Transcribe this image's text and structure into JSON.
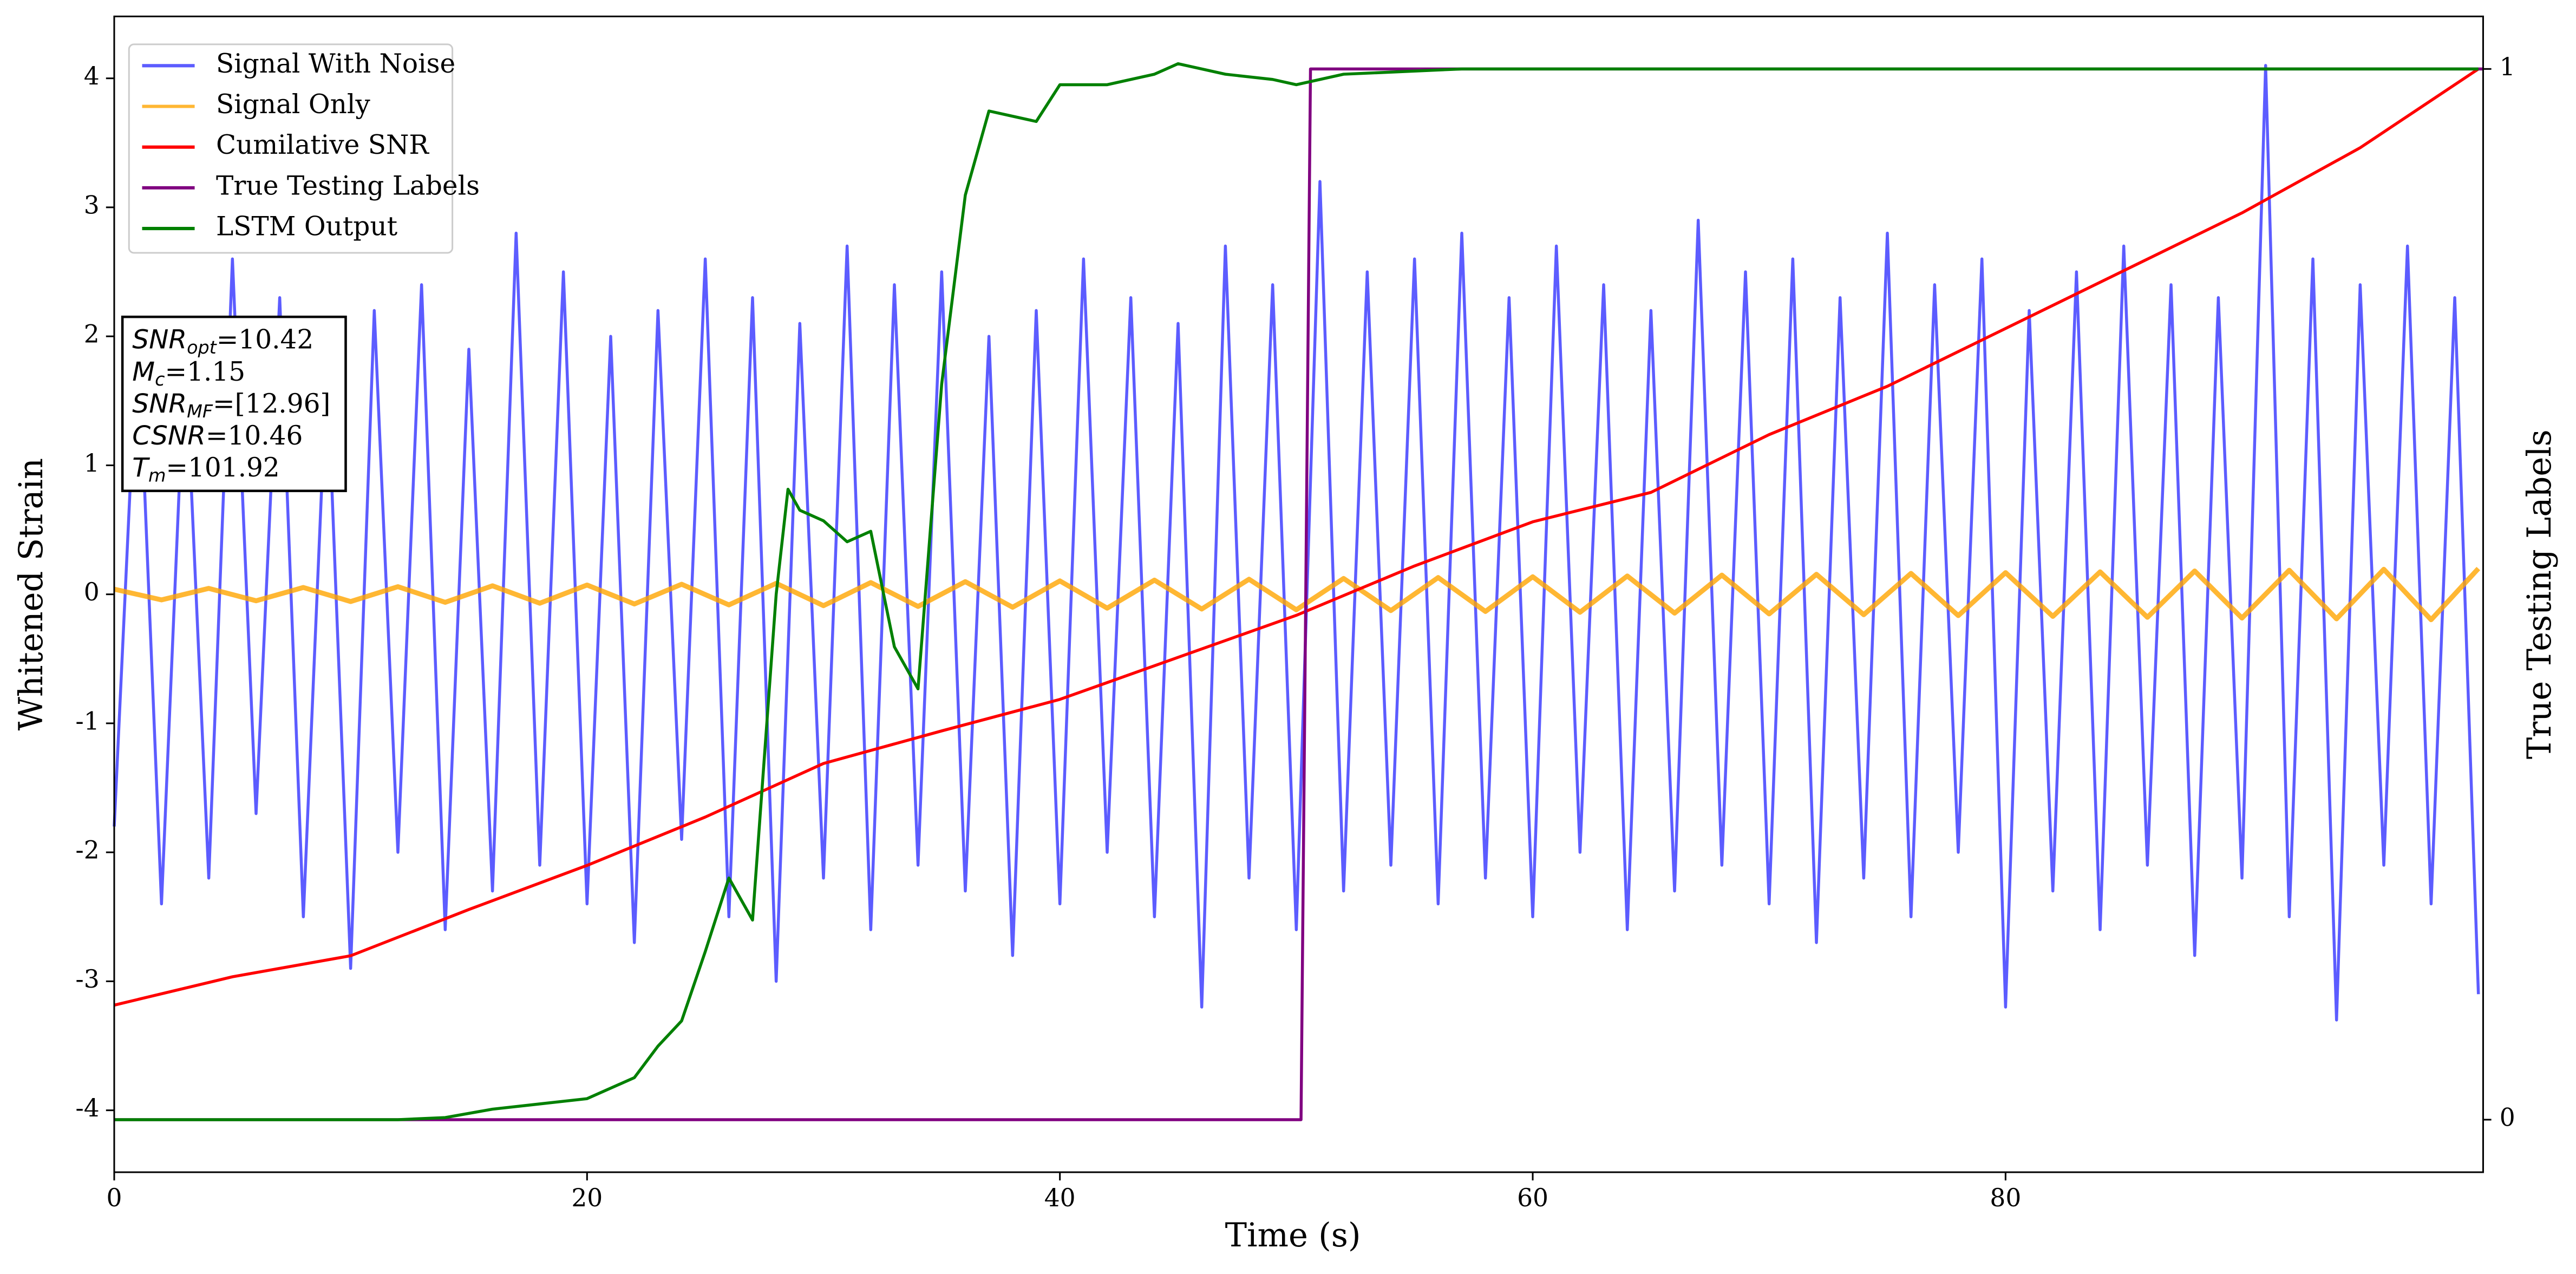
{
  "chart_data": {
    "type": "line",
    "xlabel": "Time (s)",
    "ylabel": "Whitened Strain",
    "y2label": "True Testing Labels",
    "xlim": [
      0,
      100.2
    ],
    "xticks": [
      0,
      20,
      40,
      60,
      80
    ],
    "ylim": [
      -4.48,
      4.48
    ],
    "yticks": [
      -4,
      -3,
      -2,
      -1,
      0,
      1,
      2,
      3,
      4
    ],
    "y2lim": [
      -0.05,
      1.05
    ],
    "y2ticks": [
      0,
      1
    ],
    "legend": "upper left",
    "annotations": [
      {
        "name": "SNR",
        "sub": "opt",
        "text": "=10.42"
      },
      {
        "name": "M",
        "sub": "c",
        "text": "=1.15"
      },
      {
        "name": "SNR",
        "sub": "MF",
        "text": "=[12.96]"
      },
      {
        "name": "CSNR",
        "sub": null,
        "text": "=10.46"
      },
      {
        "name": "T",
        "sub": "m",
        "text": "=101.92"
      }
    ],
    "series": [
      {
        "name": "Signal With Noise",
        "color": "#3333ff",
        "axis": "y",
        "x": [
          0,
          1,
          2,
          3,
          4,
          5,
          6,
          7,
          8,
          9,
          10,
          11,
          12,
          13,
          14,
          15,
          16,
          17,
          18,
          19,
          20,
          21,
          22,
          23,
          24,
          25,
          26,
          27,
          28,
          29,
          30,
          31,
          32,
          33,
          34,
          35,
          36,
          37,
          38,
          39,
          40,
          41,
          42,
          43,
          44,
          45,
          46,
          47,
          48,
          49,
          50,
          51,
          52,
          53,
          54,
          55,
          56,
          57,
          58,
          59,
          60,
          61,
          62,
          63,
          64,
          65,
          66,
          67,
          68,
          69,
          70,
          71,
          72,
          73,
          74,
          75,
          76,
          77,
          78,
          79,
          80,
          81,
          82,
          83,
          84,
          85,
          86,
          87,
          88,
          89,
          90,
          91,
          92,
          93,
          94,
          95,
          96,
          97,
          98,
          99,
          100
        ],
        "values": [
          -1.8,
          2.1,
          -2.4,
          1.9,
          -2.2,
          2.6,
          -1.7,
          2.3,
          -2.5,
          1.8,
          -2.9,
          2.2,
          -2.0,
          2.4,
          -2.6,
          1.9,
          -2.3,
          2.8,
          -2.1,
          2.5,
          -2.4,
          2.0,
          -2.7,
          2.2,
          -1.9,
          2.6,
          -2.5,
          2.3,
          -3.0,
          2.1,
          -2.2,
          2.7,
          -2.6,
          2.4,
          -2.1,
          2.5,
          -2.3,
          2.0,
          -2.8,
          2.2,
          -2.4,
          2.6,
          -2.0,
          2.3,
          -2.5,
          2.1,
          -3.2,
          2.7,
          -2.2,
          2.4,
          -2.6,
          3.2,
          -2.3,
          2.5,
          -2.1,
          2.6,
          -2.4,
          2.8,
          -2.2,
          2.3,
          -2.5,
          2.7,
          -2.0,
          2.4,
          -2.6,
          2.2,
          -2.3,
          2.9,
          -2.1,
          2.5,
          -2.4,
          2.6,
          -2.7,
          2.3,
          -2.2,
          2.8,
          -2.5,
          2.4,
          -2.0,
          2.6,
          -3.2,
          2.2,
          -2.3,
          2.5,
          -2.6,
          2.7,
          -2.1,
          2.4,
          -2.8,
          2.3,
          -2.2,
          4.1,
          -2.5,
          2.6,
          -3.3,
          2.4,
          -2.1,
          2.7,
          -2.4,
          2.3,
          -3.1
        ]
      },
      {
        "name": "Signal Only",
        "color": "#ffa500",
        "axis": "y",
        "x": [
          0,
          2,
          4,
          6,
          8,
          10,
          12,
          14,
          16,
          18,
          20,
          22,
          24,
          26,
          28,
          30,
          32,
          34,
          36,
          38,
          40,
          42,
          44,
          46,
          48,
          50,
          52,
          54,
          56,
          58,
          60,
          62,
          64,
          66,
          68,
          70,
          72,
          74,
          76,
          78,
          80,
          82,
          84,
          86,
          88,
          90,
          92,
          94,
          96,
          98,
          100
        ],
        "values": [
          0.04,
          -0.043,
          0.046,
          -0.05,
          0.053,
          -0.056,
          0.059,
          -0.062,
          0.066,
          -0.069,
          0.072,
          -0.075,
          0.078,
          -0.082,
          0.085,
          -0.088,
          0.091,
          -0.094,
          0.098,
          -0.1,
          0.104,
          -0.107,
          0.11,
          -0.114,
          0.117,
          -0.12,
          0.123,
          -0.126,
          0.13,
          -0.133,
          0.136,
          -0.139,
          0.142,
          -0.146,
          0.149,
          -0.152,
          0.155,
          -0.158,
          0.162,
          -0.165,
          0.168,
          -0.171,
          0.174,
          -0.178,
          0.181,
          -0.184,
          0.187,
          -0.19,
          0.194,
          -0.197,
          0.2
        ]
      },
      {
        "name": "Cumilative SNR",
        "color": "#ff0000",
        "axis": "y2",
        "x": [
          0,
          5,
          10,
          15,
          20,
          25,
          30,
          35,
          40,
          45,
          50,
          55,
          60,
          65,
          70,
          75,
          80,
          85,
          90,
          95,
          100
        ],
        "values": [
          0.109,
          0.136,
          0.156,
          0.2,
          0.242,
          0.288,
          0.339,
          0.37,
          0.4,
          0.44,
          0.48,
          0.527,
          0.569,
          0.597,
          0.652,
          0.698,
          0.753,
          0.808,
          0.863,
          0.925,
          1.0
        ]
      },
      {
        "name": "True Testing Labels",
        "color": "#800080",
        "axis": "y2",
        "x": [
          0,
          50.2,
          50.6,
          100.2
        ],
        "values": [
          0,
          0,
          1,
          1
        ]
      },
      {
        "name": "LSTM Output",
        "color": "#008000",
        "axis": "y2",
        "x": [
          0,
          12,
          14,
          16,
          18,
          20,
          22,
          23,
          24,
          25,
          26,
          27,
          28,
          28.5,
          29,
          30,
          31,
          32,
          33,
          34,
          35,
          36,
          37,
          38,
          39,
          40,
          42,
          44,
          45,
          47,
          49,
          50,
          52,
          55,
          57,
          60,
          100
        ],
        "values": [
          0,
          0,
          0.002,
          0.01,
          0.015,
          0.02,
          0.04,
          0.07,
          0.094,
          0.16,
          0.23,
          0.19,
          0.5,
          0.6,
          0.58,
          0.57,
          0.55,
          0.56,
          0.45,
          0.41,
          0.7,
          0.88,
          0.96,
          0.955,
          0.95,
          0.985,
          0.985,
          0.995,
          1.005,
          0.995,
          0.99,
          0.985,
          0.995,
          0.998,
          1.0,
          1.0,
          1.0
        ]
      }
    ]
  }
}
